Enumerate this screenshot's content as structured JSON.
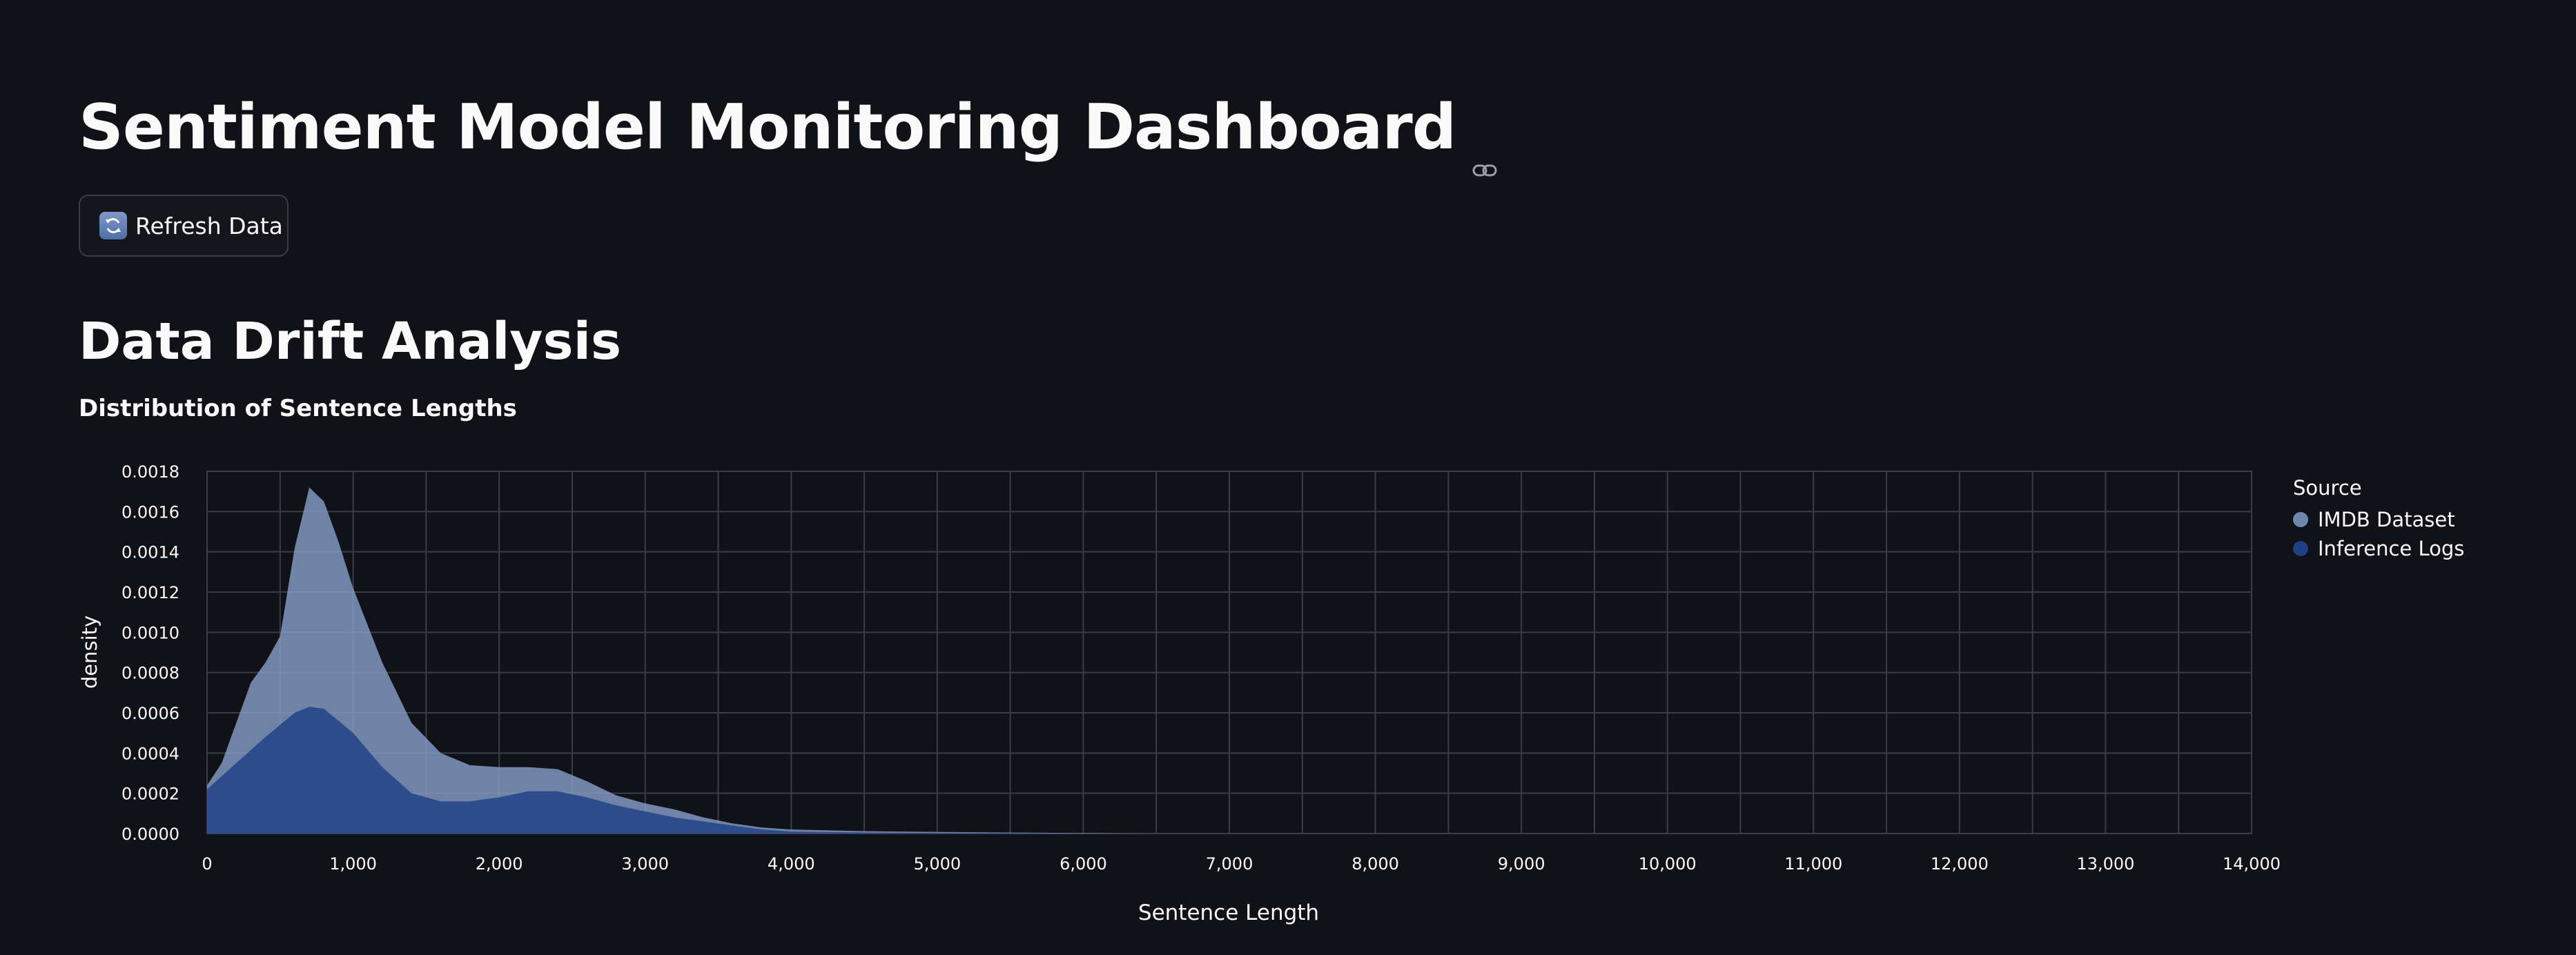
{
  "header": {
    "title": "Sentiment Model Monitoring Dashboard"
  },
  "toolbar": {
    "refresh_label": "Refresh Data"
  },
  "section": {
    "title": "Data Drift Analysis"
  },
  "chart_title": "Distribution of Sentence Lengths",
  "colors": {
    "background": "#111217",
    "imdb": "#8aa3cf",
    "inference": "#1f3f86",
    "grid": "#3a3d47"
  },
  "chart_data": {
    "type": "area",
    "xlabel": "Sentence Length",
    "ylabel": "density",
    "xlim": [
      0,
      14000
    ],
    "ylim": [
      0,
      0.0018
    ],
    "x_ticks": [
      0,
      1000,
      2000,
      3000,
      4000,
      5000,
      6000,
      7000,
      8000,
      9000,
      10000,
      11000,
      12000,
      13000,
      14000
    ],
    "x_tick_labels": [
      "0",
      "1,000",
      "2,000",
      "3,000",
      "4,000",
      "5,000",
      "6,000",
      "7,000",
      "8,000",
      "9,000",
      "10,000",
      "11,000",
      "12,000",
      "13,000",
      "14,000"
    ],
    "y_ticks": [
      0,
      0.0002,
      0.0004,
      0.0006,
      0.0008,
      0.001,
      0.0012,
      0.0014,
      0.0016,
      0.0018
    ],
    "y_tick_labels": [
      "0.0000",
      "0.0002",
      "0.0004",
      "0.0006",
      "0.0008",
      "0.0010",
      "0.0012",
      "0.0014",
      "0.0016",
      "0.0018"
    ],
    "grid": true,
    "legend": {
      "title": "Source",
      "position": "right"
    },
    "series": [
      {
        "name": "IMDB Dataset",
        "color": "#8aa3cf",
        "x": [
          0,
          100,
          200,
          300,
          400,
          500,
          600,
          700,
          800,
          900,
          1000,
          1200,
          1400,
          1600,
          1800,
          2000,
          2200,
          2400,
          2600,
          2800,
          3000,
          3200,
          3400,
          3600,
          3800,
          4000,
          4500,
          5000,
          5500,
          6000,
          6500
        ],
        "y": [
          0.00024,
          0.00035,
          0.00055,
          0.00075,
          0.00085,
          0.00098,
          0.00142,
          0.00172,
          0.00165,
          0.00145,
          0.00122,
          0.00085,
          0.00055,
          0.0004,
          0.00034,
          0.00033,
          0.00033,
          0.00032,
          0.00026,
          0.00019,
          0.00015,
          0.00012,
          8e-05,
          5e-05,
          3e-05,
          2e-05,
          1.2e-05,
          8e-06,
          5e-06,
          2e-06,
          0
        ]
      },
      {
        "name": "Inference Logs",
        "color": "#1f3f86",
        "x": [
          0,
          200,
          400,
          600,
          700,
          800,
          1000,
          1200,
          1400,
          1600,
          1800,
          2000,
          2200,
          2400,
          2600,
          2800,
          3000,
          3200,
          3400,
          3600,
          3800,
          4000,
          4500,
          5000,
          5500,
          6000
        ],
        "y": [
          0.00022,
          0.00035,
          0.00048,
          0.0006,
          0.00063,
          0.00062,
          0.0005,
          0.00033,
          0.0002,
          0.00016,
          0.00016,
          0.00018,
          0.00021,
          0.00021,
          0.00018,
          0.00014,
          0.00011,
          8e-05,
          6e-05,
          4e-05,
          2e-05,
          1e-05,
          5e-06,
          3e-06,
          2e-06,
          0
        ]
      }
    ]
  }
}
